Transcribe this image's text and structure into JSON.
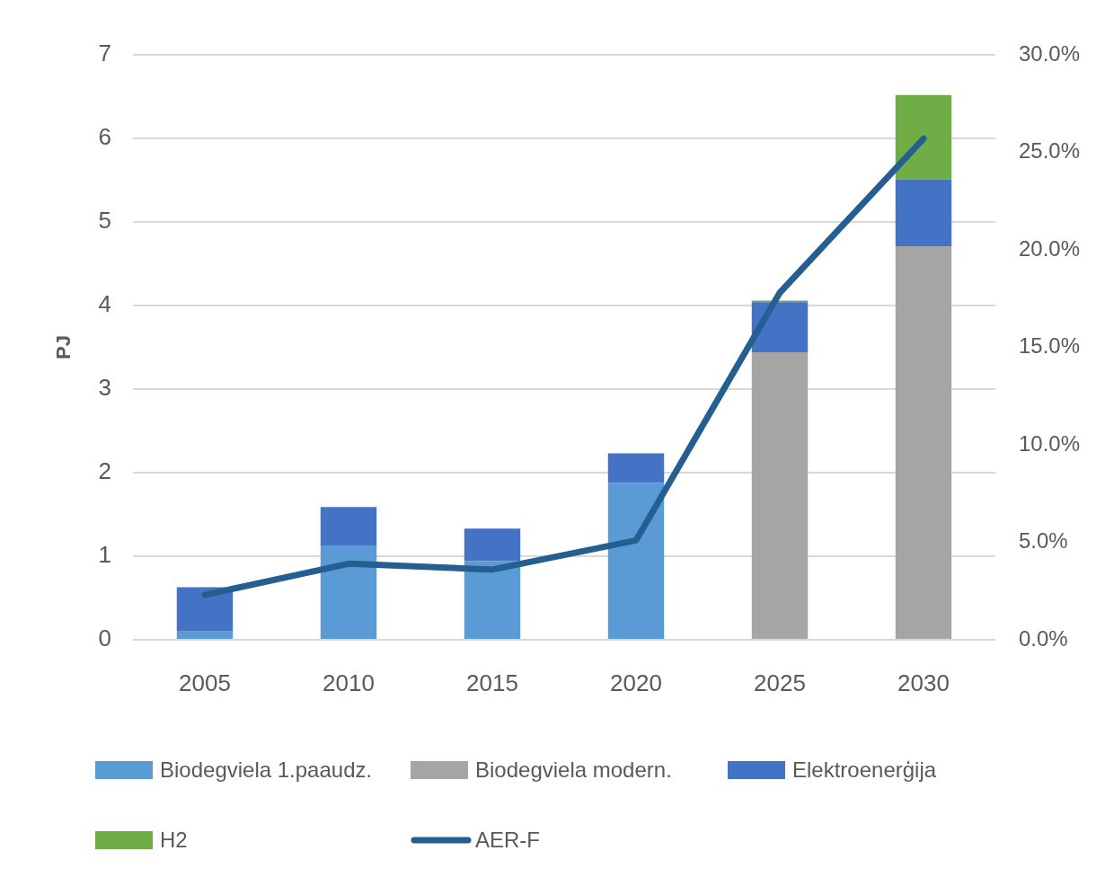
{
  "chart_data": {
    "type": "bar",
    "stacked": true,
    "ylabel": "PJ",
    "categories": [
      "2005",
      "2010",
      "2015",
      "2020",
      "2025",
      "2030"
    ],
    "series": [
      {
        "name": "Biodegviela 1.paaudz.",
        "color": "#5b9bd5",
        "values": [
          0.1,
          1.12,
          0.94,
          1.88,
          0,
          0
        ]
      },
      {
        "name": "Biodegviela modern.",
        "color": "#a5a5a5",
        "values": [
          0,
          0,
          0,
          0,
          3.44,
          4.71
        ]
      },
      {
        "name": "Elektroenerģija",
        "color": "#4472c4",
        "values": [
          0.53,
          0.47,
          0.39,
          0.35,
          0.6,
          0.8
        ]
      },
      {
        "name": "H2",
        "color": "#70ad47",
        "values": [
          0,
          0,
          0,
          0,
          0.02,
          1.01
        ]
      },
      {
        "name": "AER-F",
        "type": "line",
        "axis": "y2",
        "color": "#255e91",
        "values": [
          2.3,
          3.9,
          3.6,
          5.1,
          17.8,
          25.7
        ]
      }
    ],
    "ylim": [
      0,
      7
    ],
    "yticks": [
      0,
      1,
      2,
      3,
      4,
      5,
      6,
      7
    ],
    "y2lim": [
      0,
      30
    ],
    "y2ticks": [
      {
        "value": 0,
        "label": "0.0%"
      },
      {
        "value": 5,
        "label": "5.0%"
      },
      {
        "value": 10,
        "label": "10.0%"
      },
      {
        "value": 15,
        "label": "15.0%"
      },
      {
        "value": 20,
        "label": "20.0%"
      },
      {
        "value": 25,
        "label": "25.0%"
      },
      {
        "value": 30,
        "label": "30.0%"
      }
    ],
    "grid": "y",
    "legend": "bottom",
    "marker": "none",
    "line_style": "solid"
  }
}
